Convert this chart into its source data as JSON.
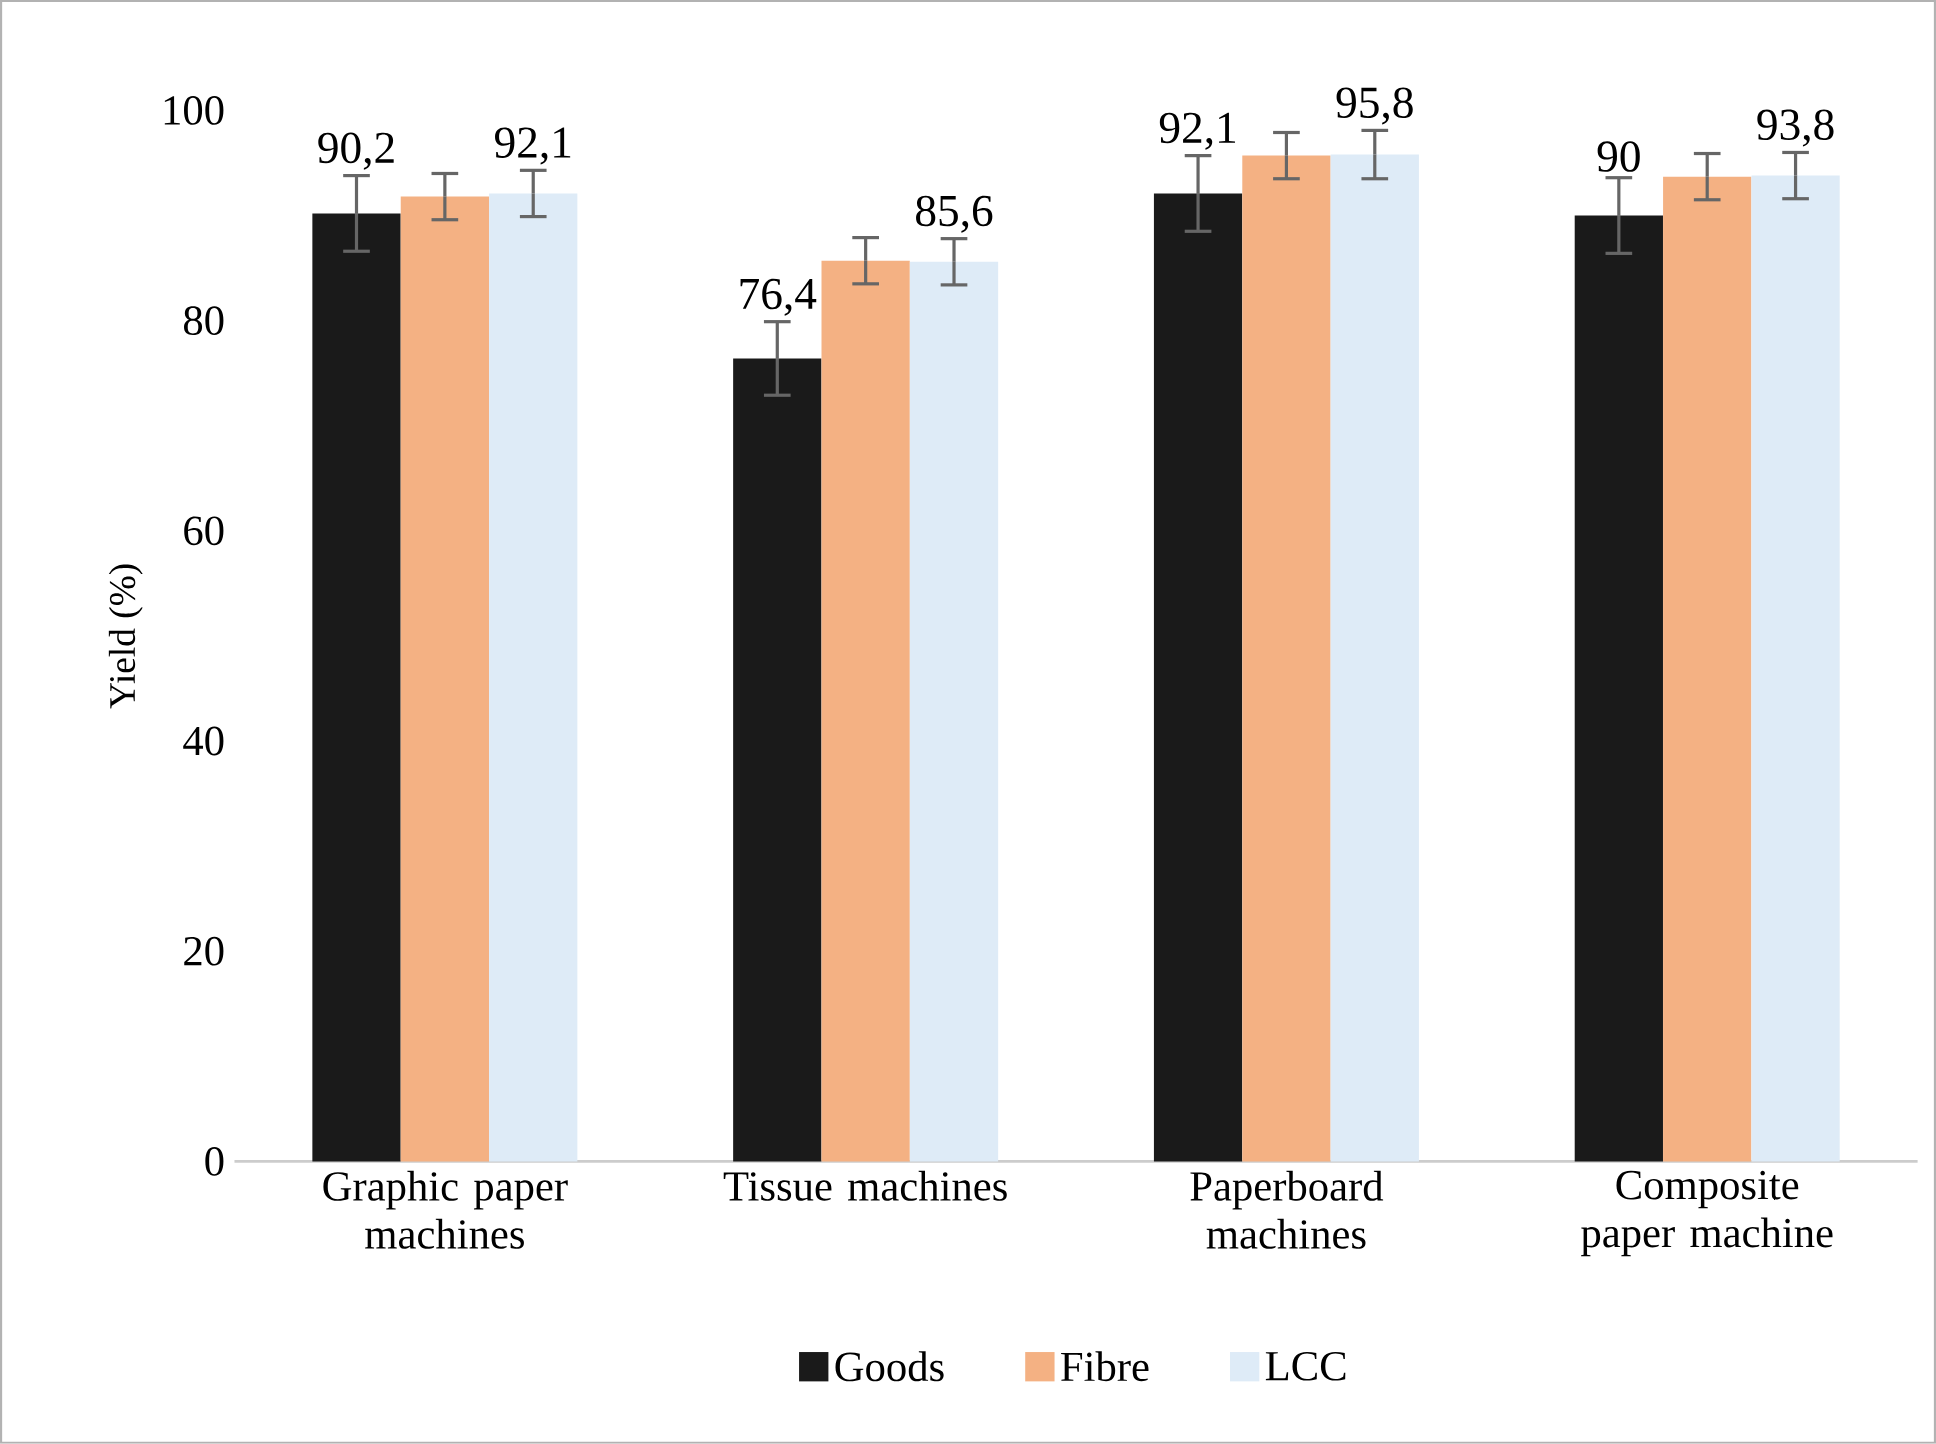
{
  "chart_data": {
    "type": "bar",
    "ylabel": "Yield (%)",
    "categories": [
      "Graphic paper machines",
      "Tissue machines",
      "Paperboard machines",
      "Composite paper machine"
    ],
    "series": [
      {
        "name": "Goods",
        "color": "#1a1a1a",
        "values": [
          90.2,
          76.4,
          92.1,
          90
        ],
        "errors": [
          3.6,
          3.5,
          3.6,
          3.6
        ],
        "value_labels": [
          "90,2",
          "76,4",
          "92,1",
          "90"
        ]
      },
      {
        "name": "Fibre",
        "color": "#f4b183",
        "values": [
          91.8,
          85.7,
          95.7,
          93.7
        ],
        "errors": [
          2.2,
          2.2,
          2.2,
          2.2
        ]
      },
      {
        "name": "LCC",
        "color": "#deebf7",
        "values": [
          92.1,
          85.6,
          95.8,
          93.8
        ],
        "errors": [
          2.2,
          2.2,
          2.3,
          2.2
        ],
        "value_labels": [
          "92,1",
          "85,6",
          "95,8",
          "93,8"
        ]
      }
    ],
    "ylim": [
      0,
      100
    ],
    "yticks": [
      0,
      20,
      40,
      60,
      80,
      100
    ],
    "grid": false,
    "legend": "bottom"
  }
}
